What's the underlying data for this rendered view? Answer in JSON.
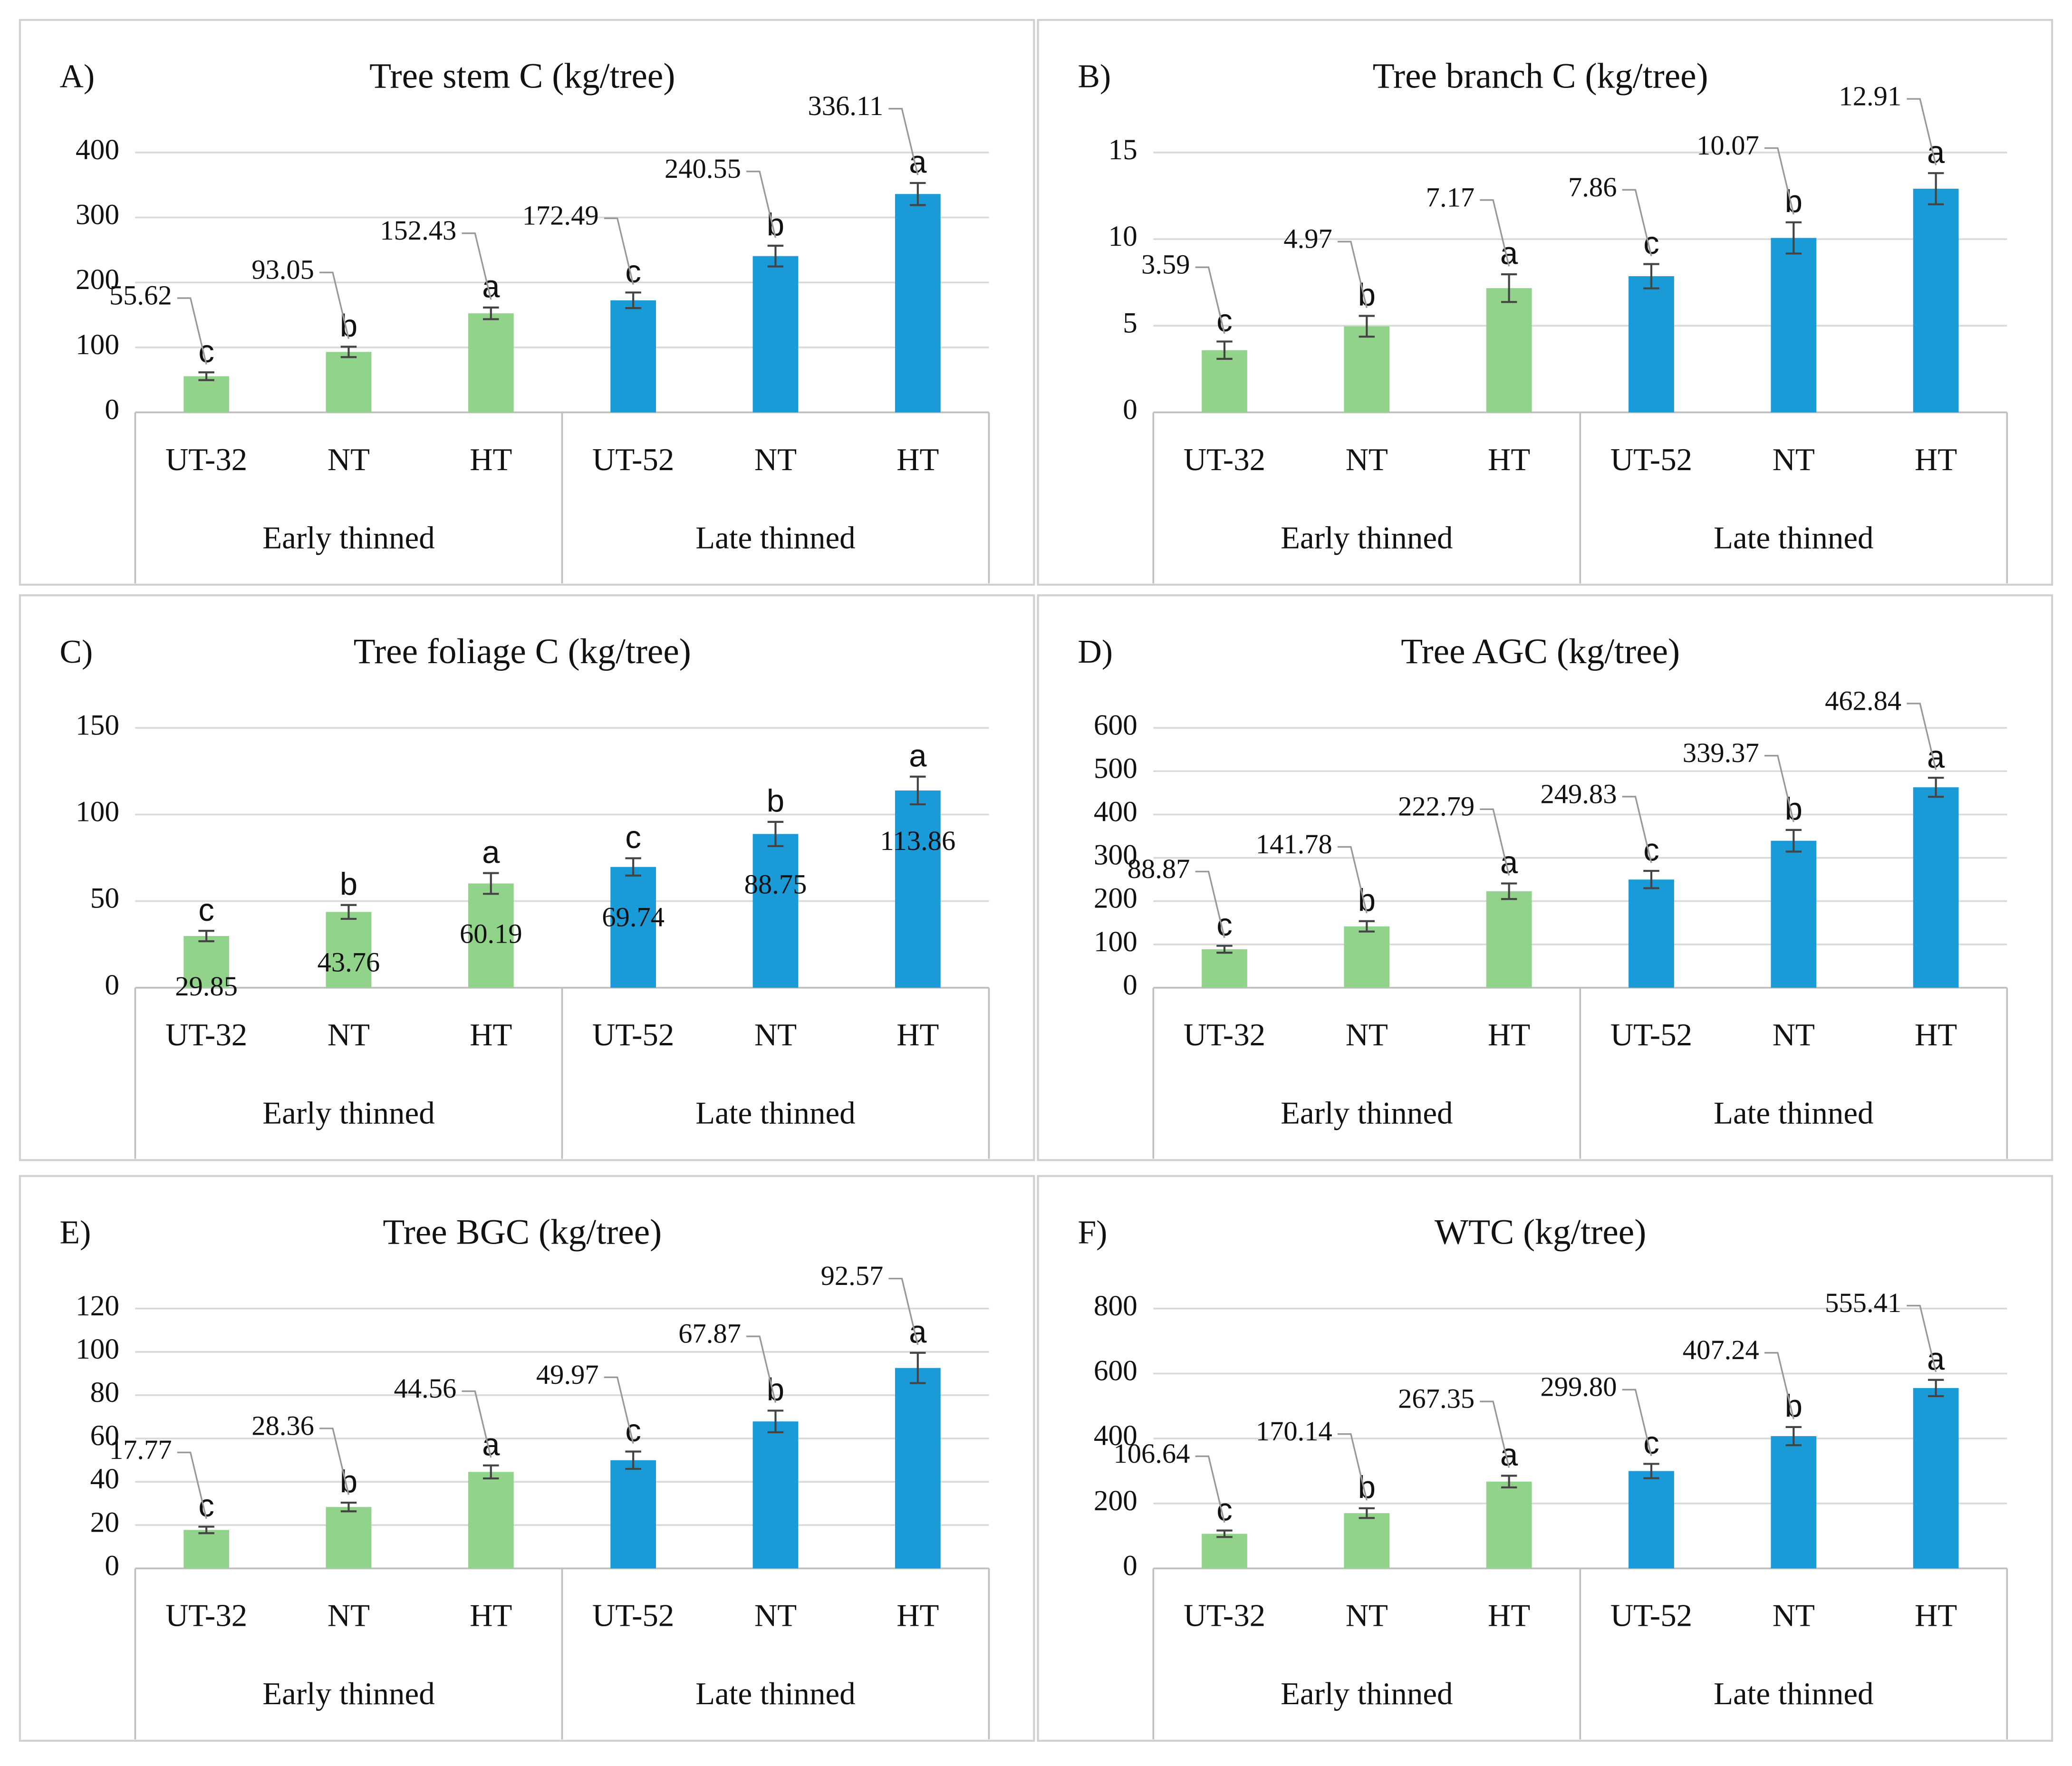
{
  "chart_data": [
    {
      "type": "bar",
      "panel": "A)",
      "title": "Tree stem C (kg/tree)",
      "categories": [
        "UT-32",
        "NT",
        "HT",
        "UT-52",
        "NT",
        "HT"
      ],
      "groups": [
        "Early thinned",
        "Late thinned"
      ],
      "values": [
        55.62,
        93.05,
        152.43,
        172.49,
        240.55,
        336.11
      ],
      "errors": [
        6,
        8,
        9,
        12,
        16,
        17
      ],
      "letters": [
        "c",
        "b",
        "a",
        "c",
        "b",
        "a"
      ],
      "colors": [
        "#92d38b",
        "#92d38b",
        "#92d38b",
        "#1a9ad6",
        "#1a9ad6",
        "#1a9ad6"
      ],
      "ylim": [
        0,
        400
      ],
      "yticks": [
        0,
        100,
        200,
        300,
        400
      ],
      "grid": true
    },
    {
      "type": "bar",
      "panel": "B)",
      "title": "Tree branch C (kg/tree)",
      "categories": [
        "UT-32",
        "NT",
        "HT",
        "UT-52",
        "NT",
        "HT"
      ],
      "groups": [
        "Early thinned",
        "Late thinned"
      ],
      "values": [
        3.59,
        4.97,
        7.17,
        7.86,
        10.07,
        12.91
      ],
      "errors": [
        0.5,
        0.6,
        0.8,
        0.7,
        0.9,
        0.9
      ],
      "letters": [
        "c",
        "b",
        "a",
        "c",
        "b",
        "a"
      ],
      "colors": [
        "#92d38b",
        "#92d38b",
        "#92d38b",
        "#1a9ad6",
        "#1a9ad6",
        "#1a9ad6"
      ],
      "ylim": [
        0,
        15
      ],
      "yticks": [
        0,
        5,
        10,
        15
      ],
      "grid": true
    },
    {
      "type": "bar",
      "panel": "C)",
      "title": "Tree foliage C (kg/tree)",
      "categories": [
        "UT-32",
        "NT",
        "HT",
        "UT-52",
        "NT",
        "HT"
      ],
      "groups": [
        "Early thinned",
        "Late thinned"
      ],
      "values": [
        29.85,
        43.76,
        60.19,
        69.74,
        88.75,
        113.86
      ],
      "errors": [
        3,
        4,
        6,
        5,
        7,
        8
      ],
      "letters": [
        "c",
        "b",
        "a",
        "c",
        "b",
        "a"
      ],
      "colors": [
        "#92d38b",
        "#92d38b",
        "#92d38b",
        "#1a9ad6",
        "#1a9ad6",
        "#1a9ad6"
      ],
      "ylim": [
        0,
        150
      ],
      "yticks": [
        0,
        50,
        100,
        150
      ],
      "grid": true,
      "label_position": "inside"
    },
    {
      "type": "bar",
      "panel": "D)",
      "title": "Tree AGC (kg/tree)",
      "categories": [
        "UT-32",
        "NT",
        "HT",
        "UT-52",
        "NT",
        "HT"
      ],
      "groups": [
        "Early thinned",
        "Late thinned"
      ],
      "values": [
        88.87,
        141.78,
        222.79,
        249.83,
        339.37,
        462.84
      ],
      "errors": [
        8,
        12,
        18,
        20,
        25,
        22
      ],
      "letters": [
        "c",
        "b",
        "a",
        "c",
        "b",
        "a"
      ],
      "colors": [
        "#92d38b",
        "#92d38b",
        "#92d38b",
        "#1a9ad6",
        "#1a9ad6",
        "#1a9ad6"
      ],
      "ylim": [
        0,
        600
      ],
      "yticks": [
        0,
        100,
        200,
        300,
        400,
        500,
        600
      ],
      "grid": true
    },
    {
      "type": "bar",
      "panel": "E)",
      "title": "Tree BGC (kg/tree)",
      "categories": [
        "UT-32",
        "NT",
        "HT",
        "UT-52",
        "NT",
        "HT"
      ],
      "groups": [
        "Early thinned",
        "Late thinned"
      ],
      "values": [
        17.77,
        28.36,
        44.56,
        49.97,
        67.87,
        92.57
      ],
      "errors": [
        1.5,
        2,
        3,
        4,
        5,
        7
      ],
      "letters": [
        "c",
        "b",
        "a",
        "c",
        "b",
        "a"
      ],
      "colors": [
        "#92d38b",
        "#92d38b",
        "#92d38b",
        "#1a9ad6",
        "#1a9ad6",
        "#1a9ad6"
      ],
      "ylim": [
        0,
        120
      ],
      "yticks": [
        0,
        20,
        40,
        60,
        80,
        100,
        120
      ],
      "grid": true
    },
    {
      "type": "bar",
      "panel": "F)",
      "title": "WTC (kg/tree)",
      "categories": [
        "UT-32",
        "NT",
        "HT",
        "UT-52",
        "NT",
        "HT"
      ],
      "groups": [
        "Early thinned",
        "Late thinned"
      ],
      "values": [
        106.64,
        170.14,
        267.35,
        299.8,
        407.24,
        555.41
      ],
      "value_labels": [
        "106.64",
        "170.14",
        "267.35",
        "299.80",
        "407.24",
        "555.41"
      ],
      "errors": [
        10,
        15,
        18,
        22,
        28,
        25
      ],
      "letters": [
        "c",
        "b",
        "a",
        "c",
        "b",
        "a"
      ],
      "colors": [
        "#92d38b",
        "#92d38b",
        "#92d38b",
        "#1a9ad6",
        "#1a9ad6",
        "#1a9ad6"
      ],
      "ylim": [
        0,
        800
      ],
      "yticks": [
        0,
        200,
        400,
        600,
        800
      ],
      "grid": true
    }
  ]
}
